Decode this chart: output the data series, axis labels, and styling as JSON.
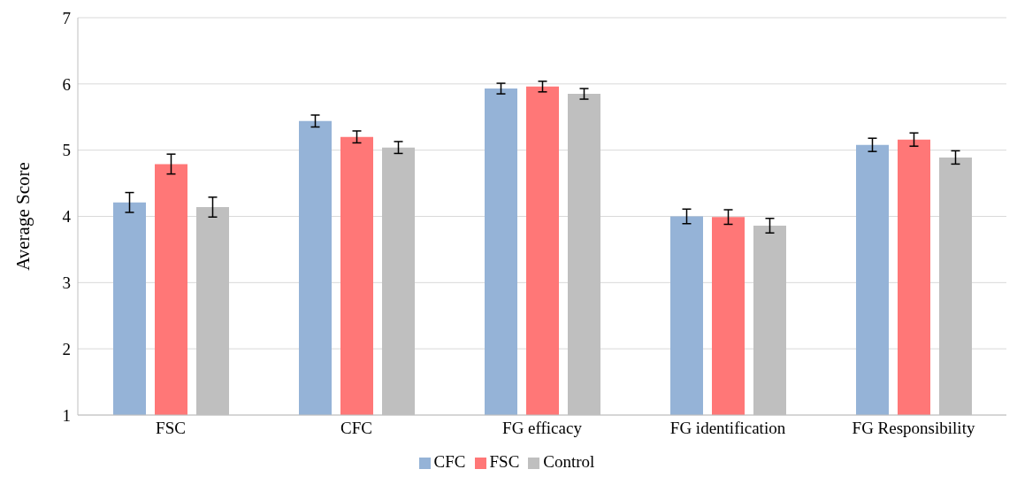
{
  "chart_data": {
    "type": "bar",
    "ylabel": "Average Score",
    "categories": [
      "FSC",
      "CFC",
      "FG efficacy",
      "FG identification",
      "FG Responsibility"
    ],
    "series": [
      {
        "name": "CFC",
        "color": "#95b3d7",
        "values": [
          4.21,
          5.44,
          5.93,
          4.0,
          5.08
        ],
        "errors": [
          0.15,
          0.09,
          0.08,
          0.11,
          0.1
        ]
      },
      {
        "name": "FSC",
        "color": "#ff7777",
        "values": [
          4.79,
          5.2,
          5.96,
          3.99,
          5.16
        ],
        "errors": [
          0.15,
          0.09,
          0.08,
          0.11,
          0.1
        ]
      },
      {
        "name": "Control",
        "color": "#bfbfbf",
        "values": [
          4.14,
          5.04,
          5.85,
          3.86,
          4.89
        ],
        "errors": [
          0.15,
          0.09,
          0.08,
          0.11,
          0.1
        ]
      }
    ],
    "ylim": [
      1,
      7
    ],
    "yticks": [
      1,
      2,
      3,
      4,
      5,
      6,
      7
    ],
    "grid": "y",
    "legend": "bottom"
  }
}
